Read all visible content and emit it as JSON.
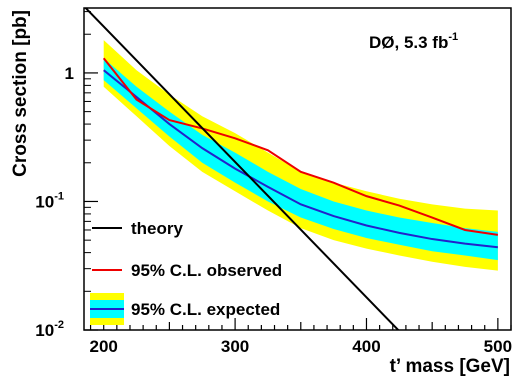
{
  "chart_data": {
    "type": "line",
    "xlabel": "t’ mass [GeV]",
    "ylabel": "Cross section [pb]",
    "xlim": [
      185,
      510
    ],
    "ylim": [
      0.01,
      3.2
    ],
    "yscale": "log",
    "grid": false,
    "legend_position": "bottom-left",
    "x_ticks": [
      {
        "value": 200,
        "label": "200"
      },
      {
        "value": 300,
        "label": "300"
      },
      {
        "value": 400,
        "label": "400"
      },
      {
        "value": 500,
        "label": "500"
      }
    ],
    "y_ticks": [
      {
        "value": 1,
        "base": "1",
        "exp": ""
      },
      {
        "value": 0.1,
        "base": "10",
        "exp": "-1"
      },
      {
        "value": 0.01,
        "base": "10",
        "exp": "-2"
      }
    ],
    "annotation": {
      "main": "DØ, 5.3 fb",
      "exp": "-1"
    },
    "series": [
      {
        "name": "theory",
        "color": "#000000",
        "x": [
          185,
          425
        ],
        "y": [
          3.3,
          0.0098
        ]
      },
      {
        "name": "95% C.L. observed",
        "color": "#ee0000",
        "x": [
          200,
          225,
          250,
          275,
          300,
          325,
          350,
          375,
          400,
          425,
          450,
          475,
          500
        ],
        "y": [
          1.3,
          0.62,
          0.43,
          0.37,
          0.31,
          0.25,
          0.17,
          0.14,
          0.11,
          0.093,
          0.075,
          0.06,
          0.055
        ]
      },
      {
        "name": "95% C.L. expected",
        "color": "#2222cc",
        "x": [
          200,
          225,
          250,
          275,
          300,
          325,
          350,
          375,
          400,
          425,
          450,
          475,
          500
        ],
        "y": [
          1.05,
          0.65,
          0.4,
          0.26,
          0.18,
          0.13,
          0.095,
          0.077,
          0.065,
          0.057,
          0.051,
          0.047,
          0.044
        ],
        "band_1sigma": {
          "color": "#00ffff",
          "low": [
            0.88,
            0.53,
            0.32,
            0.2,
            0.14,
            0.1,
            0.075,
            0.061,
            0.052,
            0.046,
            0.041,
            0.038,
            0.035
          ],
          "high": [
            1.3,
            0.78,
            0.5,
            0.33,
            0.24,
            0.17,
            0.125,
            0.1,
            0.085,
            0.075,
            0.068,
            0.062,
            0.058
          ]
        },
        "band_2sigma": {
          "color": "#ffff00",
          "low": [
            0.78,
            0.46,
            0.27,
            0.17,
            0.12,
            0.085,
            0.062,
            0.05,
            0.043,
            0.038,
            0.034,
            0.031,
            0.029
          ],
          "high": [
            1.8,
            1.05,
            0.68,
            0.46,
            0.34,
            0.24,
            0.17,
            0.14,
            0.12,
            0.105,
            0.095,
            0.088,
            0.085
          ]
        }
      }
    ]
  }
}
